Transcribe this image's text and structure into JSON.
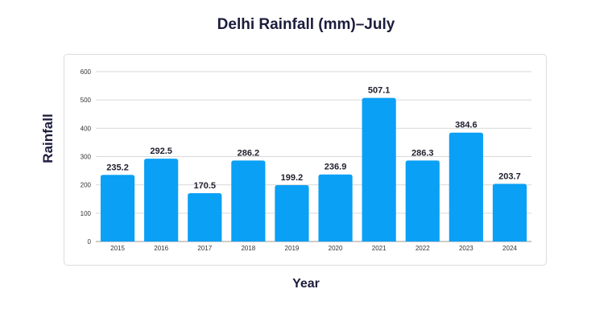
{
  "chart_data": {
    "type": "bar",
    "title": "Delhi Rainfall (mm)–July",
    "xlabel": "Year",
    "ylabel": "Rainfall",
    "categories": [
      "2015",
      "2016",
      "2017",
      "2018",
      "2019",
      "2020",
      "2021",
      "2022",
      "2023",
      "2024"
    ],
    "values": [
      235.2,
      292.5,
      170.5,
      286.2,
      199.2,
      236.9,
      507.1,
      286.3,
      384.6,
      203.7
    ],
    "value_labels": [
      "235.2",
      "292.5",
      "170.5",
      "286.2",
      "199.2",
      "236.9",
      "507.1",
      "286.3",
      "384.6",
      "203.7"
    ],
    "ylim": [
      0,
      600
    ],
    "yticks": [
      "0",
      "100",
      "200",
      "300",
      "400",
      "500",
      "600"
    ],
    "grid": true,
    "bar_color": "#0aa0f5"
  }
}
